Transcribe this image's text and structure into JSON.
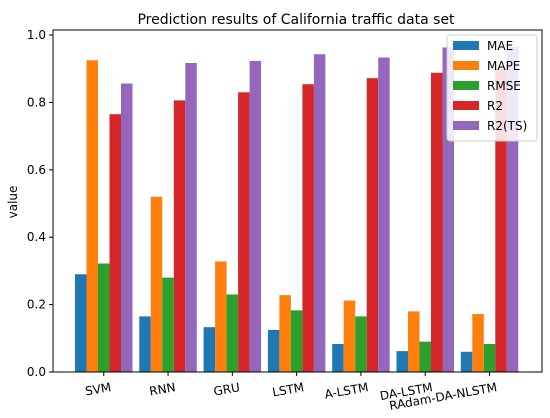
{
  "chart_data": {
    "type": "bar",
    "title": "Prediction results of California traffic data set",
    "xlabel": "",
    "ylabel": "value",
    "ylim": [
      0,
      1.0
    ],
    "yticks": [
      "0.0",
      "0.2",
      "0.4",
      "0.6",
      "0.8",
      "1.0"
    ],
    "categories": [
      "SVM",
      "RNN",
      "GRU",
      "LSTM",
      "A-LSTM",
      "DA-LSTM",
      "RAdam-DA-NLSTM"
    ],
    "legend_position": "top-right",
    "grid": false,
    "series": [
      {
        "name": "MAE",
        "color": "#1f77b4",
        "values": [
          0.29,
          0.165,
          0.133,
          0.125,
          0.083,
          0.062,
          0.06
        ]
      },
      {
        "name": "MAPE",
        "color": "#ff7f0e",
        "values": [
          0.925,
          0.52,
          0.328,
          0.228,
          0.212,
          0.18,
          0.172
        ]
      },
      {
        "name": "RMSE",
        "color": "#2ca02c",
        "values": [
          0.322,
          0.28,
          0.23,
          0.183,
          0.165,
          0.09,
          0.083
        ]
      },
      {
        "name": "R2",
        "color": "#d62728",
        "values": [
          0.765,
          0.806,
          0.83,
          0.854,
          0.872,
          0.888,
          0.9
        ]
      },
      {
        "name": "R2(TS)",
        "color": "#9467bd",
        "values": [
          0.856,
          0.917,
          0.923,
          0.943,
          0.933,
          0.963,
          0.965
        ]
      }
    ]
  }
}
